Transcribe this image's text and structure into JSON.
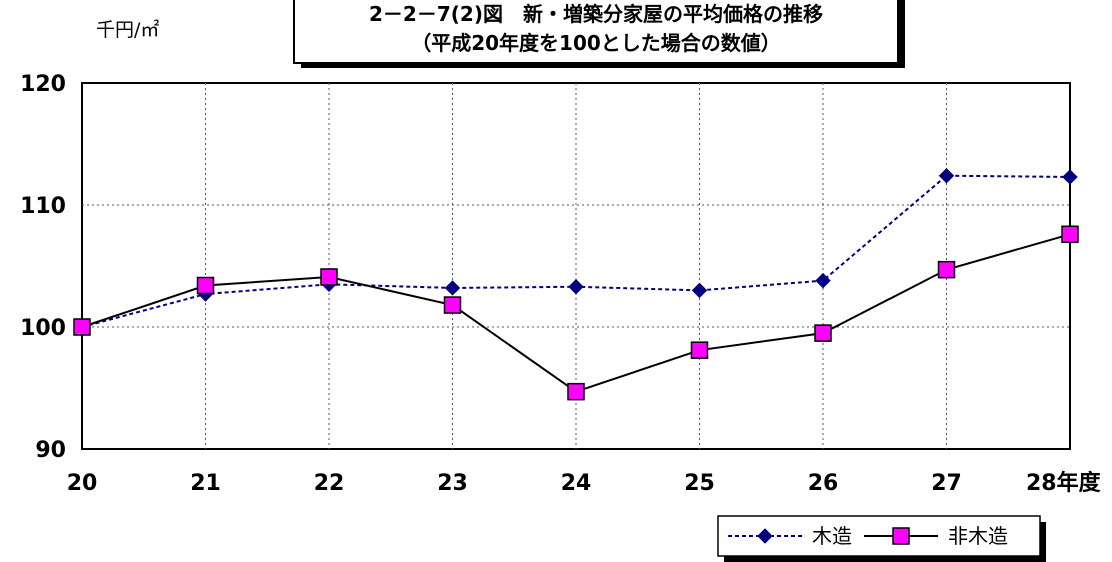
{
  "chart_data": {
    "type": "line",
    "title_line1": "2－2－7(2)図　新・増築分家屋の平均価格の推移",
    "title_line2": "（平成20年度を100とした場合の数値）",
    "unit_label": "千円/㎡",
    "categories": [
      "20",
      "21",
      "22",
      "23",
      "24",
      "25",
      "26",
      "27",
      "28年度"
    ],
    "y_ticks": [
      "90",
      "100",
      "110",
      "120"
    ],
    "ylim": [
      90,
      120
    ],
    "grid": true,
    "legend_position": "bottom-right",
    "series": [
      {
        "name": "木造",
        "values": [
          100.0,
          102.7,
          103.5,
          103.2,
          103.3,
          103.0,
          103.8,
          112.4,
          112.3
        ],
        "color": "#000080",
        "marker": "diamond",
        "line_style": "dashed"
      },
      {
        "name": "非木造",
        "values": [
          100.0,
          103.4,
          104.1,
          101.8,
          94.7,
          98.1,
          99.5,
          104.7,
          107.6
        ],
        "color": "#000000",
        "marker": "square",
        "marker_fill": "#ff00ff",
        "line_style": "solid"
      }
    ]
  }
}
